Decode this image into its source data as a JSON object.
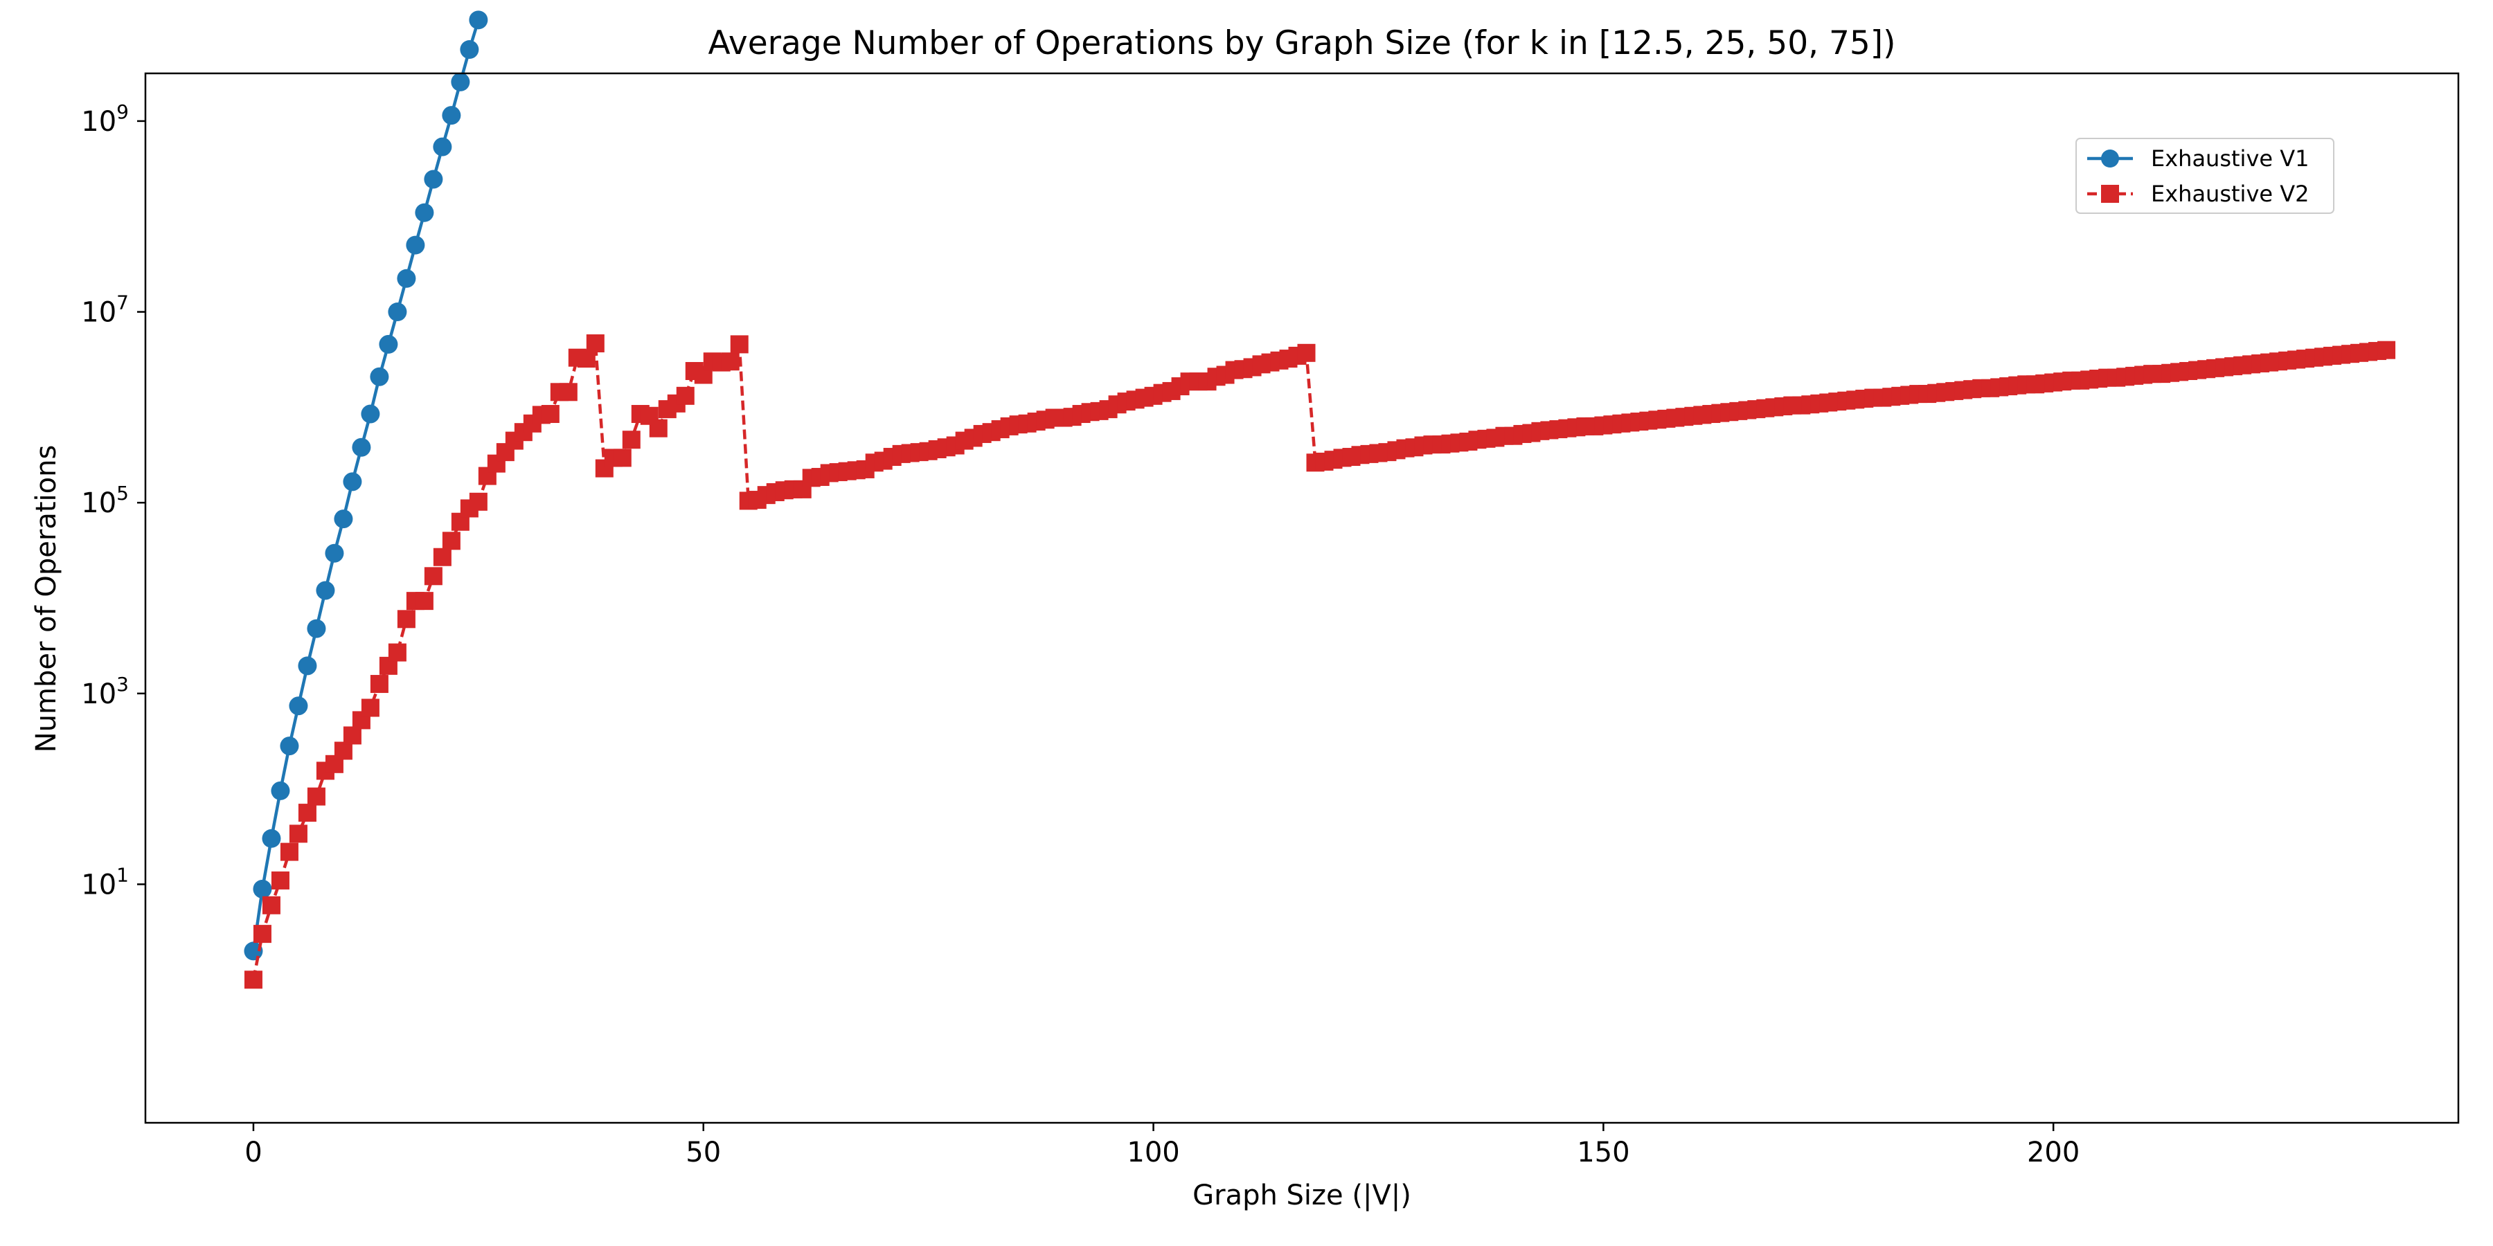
{
  "chart_data": {
    "type": "line",
    "title": "Average Number of Operations by Graph Size (for k in [12.5, 25, 50, 75])",
    "xlabel": "Graph Size (|V|)",
    "ylabel": "Number of Operations",
    "xlim": [
      -12,
      245
    ],
    "ylim_log10": [
      -1.5,
      9.5
    ],
    "yscale": "log",
    "grid": false,
    "legend_position": "top-right",
    "x_ticks": [
      0,
      50,
      100,
      150,
      200
    ],
    "y_ticks": [
      {
        "base": "10",
        "exp": "1",
        "value": 10
      },
      {
        "base": "10",
        "exp": "3",
        "value": 1000
      },
      {
        "base": "10",
        "exp": "5",
        "value": 100000
      },
      {
        "base": "10",
        "exp": "7",
        "value": 10000000
      },
      {
        "base": "10",
        "exp": "9",
        "value": 1000000000
      }
    ],
    "series": [
      {
        "name": "Exhaustive V1",
        "color": "#1f77b4",
        "line_style": "solid",
        "marker": "circle",
        "x": [
          0,
          1,
          2,
          3,
          4,
          5,
          6,
          7,
          8,
          9,
          10,
          11,
          12,
          13,
          14,
          15,
          16,
          17,
          18,
          19,
          20,
          21,
          22,
          23,
          24,
          25
        ],
        "log10_y": [
          0.3,
          0.95,
          1.48,
          1.98,
          2.45,
          2.87,
          3.29,
          3.68,
          4.08,
          4.47,
          4.83,
          5.22,
          5.58,
          5.93,
          6.32,
          6.66,
          7.0,
          7.35,
          7.7,
          8.04,
          8.39,
          8.73,
          9.06,
          9.41,
          9.75,
          10.06
        ]
      },
      {
        "name": "Exhaustive V2",
        "color": "#d62728",
        "line_style": "dashed",
        "marker": "square",
        "x": [
          0,
          1,
          2,
          3,
          4,
          5,
          6,
          7,
          8,
          9,
          10,
          11,
          12,
          13,
          14,
          15,
          16,
          17,
          18,
          19,
          20,
          21,
          22,
          23,
          24,
          25,
          26,
          27,
          28,
          29,
          30,
          31,
          32,
          33,
          34,
          35,
          36,
          37,
          38,
          39,
          40,
          41,
          42,
          43,
          44,
          45,
          46,
          47,
          48,
          49,
          50,
          51,
          52,
          53,
          54,
          55,
          56,
          57,
          58,
          59,
          60,
          61,
          62,
          63,
          64,
          65,
          66,
          67,
          68,
          69,
          70,
          71,
          72,
          73,
          74,
          75,
          76,
          77,
          78,
          79,
          80,
          81,
          82,
          83,
          84,
          85,
          86,
          87,
          88,
          89,
          90,
          91,
          92,
          93,
          94,
          95,
          96,
          97,
          98,
          99,
          100,
          101,
          102,
          103,
          104,
          105,
          106,
          107,
          108,
          109,
          110,
          111,
          112,
          113,
          114,
          115,
          116,
          117,
          118,
          119,
          120,
          121,
          122,
          123,
          124,
          125,
          126,
          127,
          128,
          129,
          130,
          131,
          132,
          133,
          134,
          135,
          136,
          137,
          138,
          139,
          140,
          141,
          142,
          143,
          144,
          145,
          146,
          147,
          148,
          149,
          150,
          151,
          152,
          153,
          154,
          155,
          156,
          157,
          158,
          159,
          160,
          161,
          162,
          163,
          164,
          165,
          166,
          167,
          168,
          169,
          170,
          171,
          172,
          173,
          174,
          175,
          176,
          177,
          178,
          179,
          180,
          181,
          182,
          183,
          184,
          185,
          186,
          187,
          188,
          189,
          190,
          191,
          192,
          193,
          194,
          195,
          196,
          197,
          198,
          199,
          200,
          201,
          202,
          203,
          204,
          205,
          206,
          207,
          208,
          209,
          210,
          211,
          212,
          213,
          214,
          215,
          216,
          217,
          218,
          219,
          220,
          221,
          222,
          223,
          224,
          225,
          226,
          227,
          228,
          229,
          230,
          231,
          232,
          233,
          234,
          235,
          236,
          237
        ],
        "log10_y": [
          0.0,
          0.48,
          0.78,
          1.04,
          1.34,
          1.53,
          1.75,
          1.92,
          2.19,
          2.26,
          2.4,
          2.56,
          2.72,
          2.85,
          3.1,
          3.29,
          3.43,
          3.78,
          3.97,
          3.97,
          4.23,
          4.43,
          4.6,
          4.8,
          4.94,
          5.01,
          5.28,
          5.41,
          5.53,
          5.65,
          5.74,
          5.83,
          5.92,
          5.93,
          6.16,
          6.16,
          6.52,
          6.51,
          6.67,
          5.36,
          5.47,
          5.47,
          5.66,
          5.93,
          5.91,
          5.78,
          5.98,
          6.04,
          6.12,
          6.38,
          6.34,
          6.48,
          6.47,
          6.48,
          6.66,
          5.02,
          5.03,
          5.08,
          5.11,
          5.13,
          5.14,
          5.14,
          5.26,
          5.27,
          5.31,
          5.32,
          5.33,
          5.34,
          5.35,
          5.42,
          5.44,
          5.48,
          5.51,
          5.52,
          5.53,
          5.54,
          5.56,
          5.58,
          5.6,
          5.65,
          5.68,
          5.72,
          5.74,
          5.77,
          5.8,
          5.82,
          5.83,
          5.85,
          5.87,
          5.89,
          5.89,
          5.9,
          5.93,
          5.95,
          5.96,
          5.98,
          6.03,
          6.06,
          6.08,
          6.1,
          6.12,
          6.15,
          6.17,
          6.22,
          6.27,
          6.27,
          6.27,
          6.32,
          6.34,
          6.39,
          6.4,
          6.42,
          6.45,
          6.47,
          6.49,
          6.51,
          6.54,
          6.57,
          5.42,
          5.43,
          5.45,
          5.47,
          5.48,
          5.5,
          5.51,
          5.52,
          5.53,
          5.55,
          5.57,
          5.58,
          5.6,
          5.61,
          5.61,
          5.62,
          5.63,
          5.64,
          5.66,
          5.67,
          5.68,
          5.7,
          5.7,
          5.72,
          5.73,
          5.75,
          5.76,
          5.77,
          5.78,
          5.79,
          5.8,
          5.8,
          5.81,
          5.82,
          5.83,
          5.84,
          5.85,
          5.86,
          5.87,
          5.88,
          5.89,
          5.9,
          5.91,
          5.92,
          5.93,
          5.94,
          5.95,
          5.96,
          5.97,
          5.98,
          5.99,
          6.0,
          6.01,
          6.02,
          6.02,
          6.03,
          6.04,
          6.05,
          6.06,
          6.07,
          6.08,
          6.09,
          6.1,
          6.1,
          6.11,
          6.12,
          6.13,
          6.14,
          6.14,
          6.15,
          6.16,
          6.17,
          6.18,
          6.19,
          6.2,
          6.2,
          6.21,
          6.22,
          6.23,
          6.24,
          6.24,
          6.25,
          6.26,
          6.27,
          6.28,
          6.28,
          6.29,
          6.3,
          6.31,
          6.31,
          6.32,
          6.33,
          6.34,
          6.35,
          6.35,
          6.36,
          6.37,
          6.38,
          6.39,
          6.4,
          6.41,
          6.42,
          6.43,
          6.44,
          6.45,
          6.46,
          6.47,
          6.48,
          6.49,
          6.5,
          6.51,
          6.52,
          6.53,
          6.54,
          6.55,
          6.56,
          6.57,
          6.58,
          6.59,
          6.6,
          6.61,
          6.62,
          6.63,
          6.64,
          6.65,
          6.66,
          6.67,
          6.68
        ]
      }
    ]
  }
}
